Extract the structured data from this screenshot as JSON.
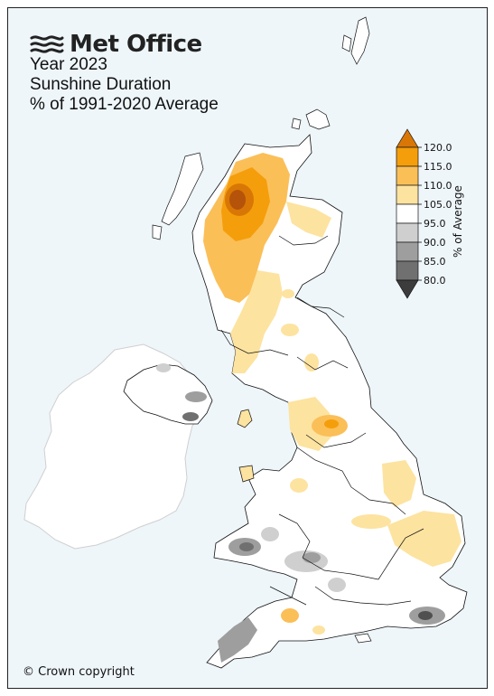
{
  "brand": {
    "name": "Met Office",
    "logo_icon": "met-office-wave-icon"
  },
  "title": {
    "line1": "Year 2023",
    "line2": "Sunshine Duration",
    "line3": "% of 1991-2020 Average"
  },
  "legend": {
    "label": "% of Average",
    "ticks": [
      "120.0",
      "115.0",
      "110.0",
      "105.0",
      "95.0",
      "90.0",
      "85.0",
      "80.0"
    ],
    "bands": [
      {
        "range": "above 120.0",
        "color": "#d97706"
      },
      {
        "range": "115.0-120.0",
        "color": "#f59e0b"
      },
      {
        "range": "110.0-115.0",
        "color": "#fbbf58"
      },
      {
        "range": "105.0-110.0",
        "color": "#fde3a0"
      },
      {
        "range": "95.0-105.0",
        "color": "#ffffff"
      },
      {
        "range": "90.0-95.0",
        "color": "#cfcfcf"
      },
      {
        "range": "85.0-90.0",
        "color": "#9e9e9e"
      },
      {
        "range": "80.0-85.0",
        "color": "#707070"
      },
      {
        "range": "below 80.0",
        "color": "#3c3c3c"
      }
    ]
  },
  "footer": {
    "copyright": "© Crown copyright"
  }
}
